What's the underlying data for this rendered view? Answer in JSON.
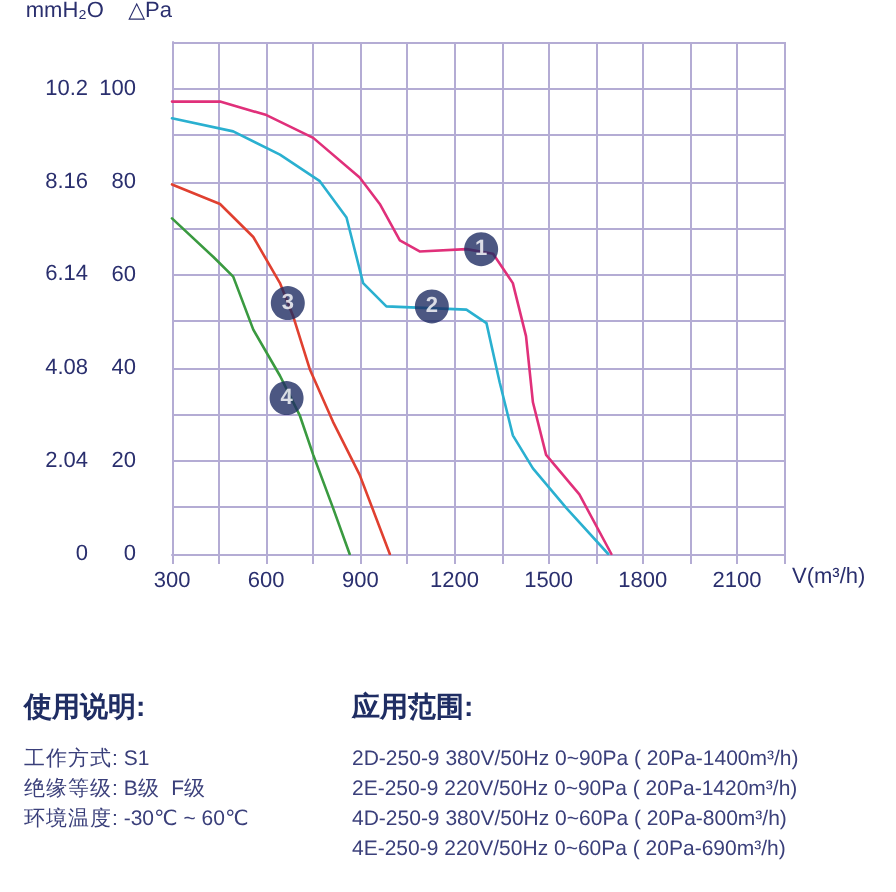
{
  "chart_data": {
    "type": "line",
    "xlabel": "V(m³/h)",
    "ylabel": "△Pa",
    "y2label": "mmH₂O",
    "xlim": [
      300,
      2250
    ],
    "xticks": [
      300,
      {
        "value": 450,
        "label": null
      },
      600,
      {
        "value": 750,
        "label": null
      },
      900,
      {
        "value": 1050,
        "label": null
      },
      1200,
      {
        "value": 1350,
        "label": null
      },
      1500,
      {
        "value": 1650,
        "label": null
      },
      1800,
      {
        "value": 1950,
        "label": null
      },
      2100,
      {
        "value": 2250,
        "label": null
      }
    ],
    "ylim": [
      0,
      110
    ],
    "yticks": [
      0,
      {
        "value": 10,
        "label": null
      },
      20,
      {
        "value": 30,
        "label": null
      },
      40,
      {
        "value": 50,
        "label": null
      },
      60,
      {
        "value": 70,
        "label": null
      },
      80,
      {
        "value": 90,
        "label": null
      },
      100,
      {
        "value": 110,
        "label": null
      }
    ],
    "y2lim": [
      0,
      11.22
    ],
    "y2ticks": [
      0,
      2.04,
      4.08,
      6.14,
      8.16,
      10.2
    ],
    "grid": true,
    "marker": "none",
    "line_style": "solid",
    "series": [
      {
        "color": "#e0307a",
        "x": [
          300,
          453,
          601,
          750,
          898,
          962,
          1026,
          1089,
          1238,
          1323,
          1386,
          1428,
          1450,
          1492,
          1598,
          1700
        ],
        "values": [
          97.2,
          97.2,
          94.3,
          89.4,
          80.9,
          75.2,
          67.4,
          65,
          65.5,
          64.5,
          58.2,
          46.8,
          32.6,
          21.3,
          12.8,
          0
        ]
      },
      {
        "color": "#2ab0d0",
        "x": [
          300,
          495,
          644,
          771,
          856,
          909,
          983,
          1238,
          1302,
          1344,
          1386,
          1450,
          1556,
          1690
        ],
        "values": [
          93.6,
          90.8,
          85.8,
          80.1,
          72.3,
          58.2,
          53.2,
          52.5,
          49.6,
          36.9,
          25.5,
          18.4,
          9.9,
          0
        ]
      },
      {
        "color": "#e04030",
        "x": [
          300,
          453,
          559,
          644,
          686,
          739,
          813,
          898,
          994
        ],
        "values": [
          79.4,
          75.2,
          68.1,
          58.2,
          51.1,
          39.7,
          28.4,
          17,
          0
        ]
      },
      {
        "color": "#3a9a40",
        "x": [
          300,
          432,
          495,
          559,
          644,
          707,
          750,
          813,
          866
        ],
        "values": [
          72.1,
          63.8,
          59.6,
          48.2,
          38.3,
          29.8,
          21.3,
          9.9,
          0
        ]
      }
    ],
    "annotations": [
      {
        "text": "1",
        "x": 1285,
        "y": 65.5
      },
      {
        "text": "2",
        "x": 1128,
        "y": 53.2
      },
      {
        "text": "3",
        "x": 669,
        "y": 53.9
      },
      {
        "text": "4",
        "x": 665,
        "y": 33.5
      },
      "使用说明:",
      "工作方式: S1",
      "绝缘等级: B级  F级",
      "环境温度: -30℃ ~ 60℃",
      "应用范围:",
      "2D-250-9 380V/50Hz 0~90Pa ( 20Pa-1400m³/h)",
      "2E-250-9 220V/50Hz 0~90Pa ( 20Pa-1420m³/h)",
      "4D-250-9 380V/50Hz 0~60Pa ( 20Pa-800m³/h)",
      "4E-250-9 220V/50Hz 0~60Pa ( 20Pa-690m³/h)"
    ]
  }
}
